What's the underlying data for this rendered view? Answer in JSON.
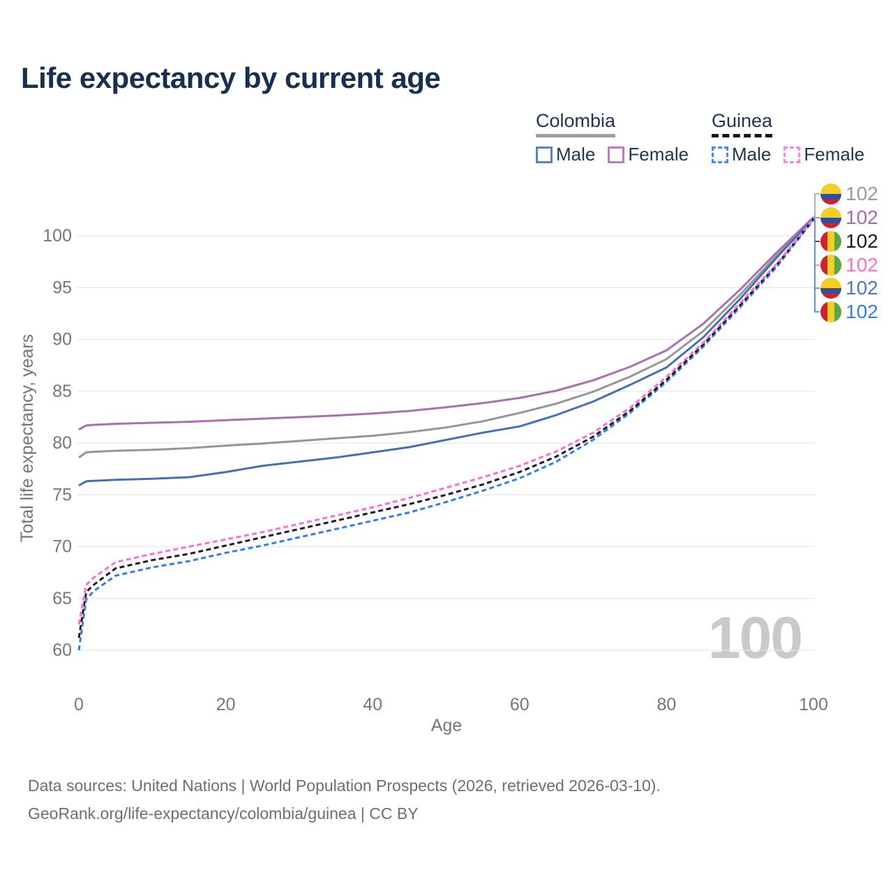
{
  "title": "Life expectancy by current age",
  "legend": {
    "groups": [
      {
        "label": "Colombia",
        "line_style": "solid",
        "underline_color": "#a0a0a0",
        "items": [
          {
            "label": "Male",
            "color": "#5b82c3",
            "dashed": false
          },
          {
            "label": "Female",
            "color": "#bd7cbe",
            "dashed": false
          }
        ]
      },
      {
        "label": "Guinea",
        "line_style": "dashed",
        "underline_color": "#141414",
        "items": [
          {
            "label": "Male",
            "color": "#3d8bfd",
            "dashed": true
          },
          {
            "label": "Female",
            "color": "#ff85e0",
            "dashed": true
          }
        ]
      }
    ]
  },
  "chart_data": {
    "type": "line",
    "title": "Life expectancy by current age",
    "xlabel": "Age",
    "ylabel": "Total life expectancy, years",
    "xlim": [
      0,
      100
    ],
    "ylim": [
      58,
      103
    ],
    "x_ticks": [
      0,
      20,
      40,
      60,
      80,
      100
    ],
    "y_ticks": [
      60,
      65,
      70,
      75,
      80,
      85,
      90,
      95,
      100
    ],
    "grid": "horizontal",
    "grid_color": "#e8e8e8",
    "axis_text_color": "#767676",
    "watermark": "100",
    "watermark_color": "#c9c9c9",
    "legend_position": "top-right",
    "ages": [
      0,
      1,
      2,
      5,
      10,
      15,
      20,
      25,
      30,
      35,
      40,
      45,
      50,
      55,
      60,
      65,
      70,
      75,
      80,
      85,
      90,
      95,
      100
    ],
    "series": [
      {
        "name": "Colombia",
        "country": "Colombia",
        "sex": "Both",
        "line": "solid",
        "color": "#969696",
        "end_label": "102",
        "values": [
          78.6,
          79.1,
          79.15,
          79.25,
          79.35,
          79.5,
          79.75,
          79.95,
          80.2,
          80.45,
          80.7,
          81.05,
          81.5,
          82.1,
          82.9,
          83.8,
          84.95,
          86.4,
          88.1,
          90.8,
          94.3,
          98.1,
          101.75
        ]
      },
      {
        "name": "Colombia Female",
        "country": "Colombia",
        "sex": "Female",
        "line": "solid",
        "color": "#a96fb0",
        "end_label": "102",
        "values": [
          81.3,
          81.7,
          81.75,
          81.85,
          81.95,
          82.05,
          82.2,
          82.35,
          82.5,
          82.65,
          82.85,
          83.1,
          83.45,
          83.85,
          84.35,
          85.05,
          86.05,
          87.35,
          88.95,
          91.5,
          94.8,
          98.4,
          101.8
        ]
      },
      {
        "name": "Colombia Male",
        "country": "Colombia",
        "sex": "Male",
        "line": "solid",
        "color": "#4470b6",
        "end_label": "102",
        "values": [
          75.9,
          76.3,
          76.35,
          76.45,
          76.55,
          76.7,
          77.2,
          77.8,
          78.2,
          78.6,
          79.1,
          79.6,
          80.3,
          81.0,
          81.6,
          82.7,
          84.0,
          85.6,
          87.3,
          90.2,
          93.9,
          97.9,
          101.7
        ]
      },
      {
        "name": "Guinea Male",
        "country": "Guinea",
        "sex": "Male",
        "line": "dashed",
        "color": "#2e7ef0",
        "end_label": "102",
        "values": [
          60.0,
          64.9,
          65.7,
          67.2,
          68.0,
          68.6,
          69.4,
          70.1,
          70.9,
          71.7,
          72.5,
          73.3,
          74.3,
          75.4,
          76.6,
          78.2,
          80.3,
          82.9,
          85.9,
          89.3,
          93.1,
          97.0,
          101.55
        ]
      },
      {
        "name": "Guinea",
        "country": "Guinea",
        "sex": "Both",
        "line": "dashed",
        "color": "#1b1b1b",
        "end_label": "102",
        "values": [
          61.2,
          65.6,
          66.3,
          67.9,
          68.7,
          69.3,
          70.1,
          70.9,
          71.7,
          72.5,
          73.3,
          74.1,
          75.0,
          76.0,
          77.2,
          78.7,
          80.6,
          83.1,
          86.1,
          89.5,
          93.3,
          97.2,
          101.6
        ]
      },
      {
        "name": "Guinea Female",
        "country": "Guinea",
        "sex": "Female",
        "line": "dashed",
        "color": "#ff6ed4",
        "end_label": "102",
        "values": [
          62.5,
          66.3,
          67.0,
          68.5,
          69.3,
          70.0,
          70.7,
          71.4,
          72.2,
          73.0,
          73.8,
          74.7,
          75.7,
          76.7,
          77.8,
          79.2,
          81.0,
          83.4,
          86.4,
          89.7,
          93.5,
          97.3,
          101.65
        ]
      }
    ]
  },
  "end_labels": [
    {
      "flag": "colombia",
      "value": "102",
      "color": "#9b9b9b"
    },
    {
      "flag": "colombia",
      "value": "102",
      "color": "#a66bad"
    },
    {
      "flag": "guinea",
      "value": "102",
      "color": "#1b1b1b"
    },
    {
      "flag": "guinea",
      "value": "102",
      "color": "#ff6ed4"
    },
    {
      "flag": "colombia",
      "value": "102",
      "color": "#4c77c2"
    },
    {
      "flag": "guinea",
      "value": "102",
      "color": "#2e7ef0"
    }
  ],
  "flag_colors": {
    "colombia": {
      "yellow": "#F7CE27",
      "blue": "#2C51A2",
      "red": "#CF2030"
    },
    "guinea": {
      "red": "#CF2030",
      "yellow": "#F7CE27",
      "green": "#5BA645"
    }
  },
  "footer": {
    "line1": "Data sources: United Nations | World Population Prospects (2026, retrieved 2026-03-10).",
    "line2": "GeoRank.org/life-expectancy/colombia/guinea | CC BY"
  }
}
